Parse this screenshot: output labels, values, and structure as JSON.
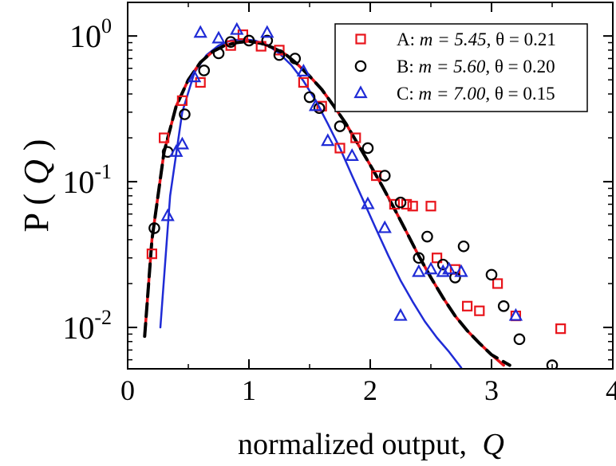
{
  "chart_data": {
    "type": "scatter",
    "title": "",
    "xlabel": "normalized output,",
    "xlabel_var": "Q",
    "ylabel": "P ( ",
    "ylabel_var": "Q",
    "ylabel_close": " )",
    "xlim": [
      0,
      4
    ],
    "ylim": [
      0.0052,
      1.7
    ],
    "yscale": "log",
    "x_ticks": [
      0,
      1,
      2,
      3,
      4
    ],
    "x_tick_labels": [
      "0",
      "1",
      "2",
      "3",
      "4"
    ],
    "y_ticks": [
      0.01,
      0.1,
      1
    ],
    "y_tick_labels": [
      {
        "base": "10",
        "exp": "-2"
      },
      {
        "base": "10",
        "exp": "-1"
      },
      {
        "base": "10",
        "exp": "0"
      }
    ],
    "grid": false,
    "legend_position": "top-right",
    "series": [
      {
        "name": "A",
        "legend": {
          "prefix": "A: ",
          "m_label": "m",
          "m_value": " = 5.45",
          "theta": ", θ = 0.21"
        },
        "marker": "square",
        "color": "#e8141b",
        "points": [
          [
            0.2,
            0.032
          ],
          [
            0.3,
            0.2
          ],
          [
            0.45,
            0.36
          ],
          [
            0.6,
            0.48
          ],
          [
            0.85,
            0.86
          ],
          [
            0.95,
            1.02
          ],
          [
            1.1,
            0.85
          ],
          [
            1.25,
            0.8
          ],
          [
            1.45,
            0.48
          ],
          [
            1.6,
            0.33
          ],
          [
            1.75,
            0.17
          ],
          [
            1.88,
            0.2
          ],
          [
            2.05,
            0.11
          ],
          [
            2.2,
            0.07
          ],
          [
            2.3,
            0.07
          ],
          [
            2.35,
            0.068
          ],
          [
            2.5,
            0.068
          ],
          [
            2.55,
            0.03
          ],
          [
            2.7,
            0.025
          ],
          [
            2.8,
            0.014
          ],
          [
            2.9,
            0.013
          ],
          [
            3.05,
            0.02
          ],
          [
            3.2,
            0.012
          ],
          [
            3.57,
            0.0098
          ]
        ],
        "fit": [
          [
            0.14,
            0.0087
          ],
          [
            0.2,
            0.04
          ],
          [
            0.3,
            0.16
          ],
          [
            0.4,
            0.33
          ],
          [
            0.5,
            0.5
          ],
          [
            0.6,
            0.66
          ],
          [
            0.7,
            0.78
          ],
          [
            0.8,
            0.86
          ],
          [
            0.9,
            0.9
          ],
          [
            1.0,
            0.92
          ],
          [
            1.1,
            0.89
          ],
          [
            1.2,
            0.83
          ],
          [
            1.3,
            0.75
          ],
          [
            1.4,
            0.64
          ],
          [
            1.5,
            0.53
          ],
          [
            1.6,
            0.43
          ],
          [
            1.7,
            0.33
          ],
          [
            1.8,
            0.25
          ],
          [
            1.9,
            0.18
          ],
          [
            2.0,
            0.13
          ],
          [
            2.1,
            0.093
          ],
          [
            2.2,
            0.065
          ],
          [
            2.3,
            0.045
          ],
          [
            2.4,
            0.031
          ],
          [
            2.5,
            0.022
          ],
          [
            2.6,
            0.016
          ],
          [
            2.7,
            0.012
          ],
          [
            2.8,
            0.0095
          ],
          [
            2.9,
            0.0078
          ],
          [
            3.0,
            0.0065
          ],
          [
            3.1,
            0.0055
          ]
        ]
      },
      {
        "name": "B",
        "legend": {
          "prefix": "B: ",
          "m_label": "m",
          "m_value": " = 5.60",
          "theta": ", θ = 0.20"
        },
        "marker": "circle",
        "color": "#000000",
        "points": [
          [
            0.22,
            0.048
          ],
          [
            0.33,
            0.16
          ],
          [
            0.47,
            0.29
          ],
          [
            0.63,
            0.58
          ],
          [
            0.75,
            0.76
          ],
          [
            0.85,
            0.91
          ],
          [
            1.0,
            0.93
          ],
          [
            1.15,
            0.93
          ],
          [
            1.25,
            0.74
          ],
          [
            1.38,
            0.7
          ],
          [
            1.5,
            0.38
          ],
          [
            1.58,
            0.32
          ],
          [
            1.75,
            0.24
          ],
          [
            1.98,
            0.17
          ],
          [
            2.12,
            0.11
          ],
          [
            2.25,
            0.072
          ],
          [
            2.4,
            0.03
          ],
          [
            2.47,
            0.042
          ],
          [
            2.6,
            0.027
          ],
          [
            2.7,
            0.022
          ],
          [
            2.77,
            0.036
          ],
          [
            3.0,
            0.023
          ],
          [
            3.1,
            0.014
          ],
          [
            3.23,
            0.0083
          ],
          [
            3.5,
            0.0055
          ]
        ],
        "fit": [
          [
            0.14,
            0.0087
          ],
          [
            0.2,
            0.04
          ],
          [
            0.3,
            0.16
          ],
          [
            0.4,
            0.33
          ],
          [
            0.5,
            0.5
          ],
          [
            0.6,
            0.66
          ],
          [
            0.7,
            0.78
          ],
          [
            0.8,
            0.86
          ],
          [
            0.9,
            0.9
          ],
          [
            1.0,
            0.92
          ],
          [
            1.1,
            0.89
          ],
          [
            1.2,
            0.83
          ],
          [
            1.3,
            0.75
          ],
          [
            1.4,
            0.64
          ],
          [
            1.5,
            0.53
          ],
          [
            1.6,
            0.43
          ],
          [
            1.7,
            0.33
          ],
          [
            1.8,
            0.25
          ],
          [
            1.9,
            0.18
          ],
          [
            2.0,
            0.13
          ],
          [
            2.1,
            0.093
          ],
          [
            2.2,
            0.065
          ],
          [
            2.3,
            0.045
          ],
          [
            2.4,
            0.031
          ],
          [
            2.5,
            0.022
          ],
          [
            2.6,
            0.016
          ],
          [
            2.7,
            0.012
          ],
          [
            2.8,
            0.0095
          ],
          [
            2.9,
            0.0078
          ],
          [
            3.0,
            0.0065
          ],
          [
            3.15,
            0.0055
          ]
        ]
      },
      {
        "name": "C",
        "legend": {
          "prefix": "C: ",
          "m_label": "m",
          "m_value": " = 7.00",
          "theta": ", θ = 0.15"
        },
        "marker": "triangle",
        "color": "#1f2bd6",
        "points": [
          [
            0.33,
            0.058
          ],
          [
            0.4,
            0.16
          ],
          [
            0.45,
            0.18
          ],
          [
            0.55,
            0.52
          ],
          [
            0.6,
            1.05
          ],
          [
            0.75,
            0.96
          ],
          [
            0.9,
            1.1
          ],
          [
            1.15,
            1.05
          ],
          [
            1.45,
            0.57
          ],
          [
            1.55,
            0.33
          ],
          [
            1.65,
            0.19
          ],
          [
            1.85,
            0.15
          ],
          [
            1.98,
            0.07
          ],
          [
            2.12,
            0.048
          ],
          [
            2.25,
            0.012
          ],
          [
            2.4,
            0.024
          ],
          [
            2.5,
            0.025
          ],
          [
            2.6,
            0.024
          ],
          [
            2.65,
            0.025
          ],
          [
            2.75,
            0.024
          ],
          [
            3.2,
            0.012
          ]
        ],
        "fit": [
          [
            0.27,
            0.01
          ],
          [
            0.35,
            0.08
          ],
          [
            0.45,
            0.3
          ],
          [
            0.55,
            0.56
          ],
          [
            0.65,
            0.74
          ],
          [
            0.75,
            0.86
          ],
          [
            0.85,
            0.93
          ],
          [
            0.95,
            0.95
          ],
          [
            1.05,
            0.93
          ],
          [
            1.15,
            0.87
          ],
          [
            1.25,
            0.76
          ],
          [
            1.35,
            0.63
          ],
          [
            1.45,
            0.49
          ],
          [
            1.55,
            0.36
          ],
          [
            1.65,
            0.25
          ],
          [
            1.75,
            0.17
          ],
          [
            1.85,
            0.11
          ],
          [
            1.95,
            0.072
          ],
          [
            2.05,
            0.047
          ],
          [
            2.15,
            0.031
          ],
          [
            2.25,
            0.021
          ],
          [
            2.35,
            0.015
          ],
          [
            2.45,
            0.011
          ],
          [
            2.55,
            0.0085
          ],
          [
            2.65,
            0.0068
          ],
          [
            2.75,
            0.0053
          ]
        ]
      }
    ]
  }
}
